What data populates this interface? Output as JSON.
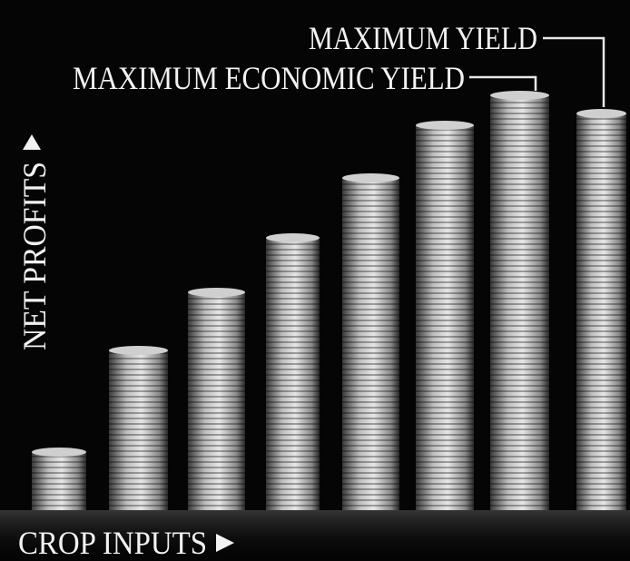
{
  "annotations": {
    "maximum_yield": "MAXIMUM YIELD",
    "maximum_economic_yield": "MAXIMUM ECONOMIC YIELD"
  },
  "axes": {
    "y_label": "NET PROFITS",
    "x_label": "CROP INPUTS"
  }
}
